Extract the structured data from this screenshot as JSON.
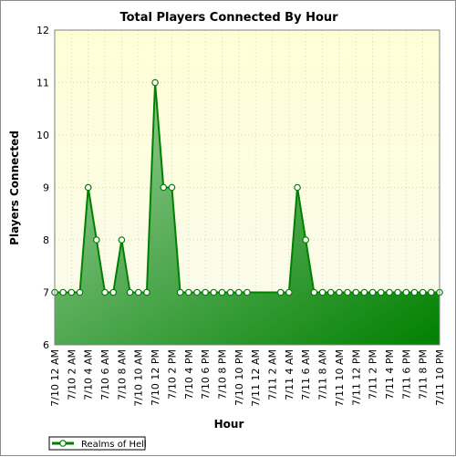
{
  "chart_data": {
    "type": "area",
    "title": "Total Players Connected By Hour",
    "xlabel": "Hour",
    "ylabel": "Players Connected",
    "ylim": [
      6,
      12
    ],
    "yticks": [
      6,
      7,
      8,
      9,
      10,
      11,
      12
    ],
    "grid": true,
    "legend_position": "bottom-left",
    "x": [
      "7/10 12 AM",
      "7/10 1 AM",
      "7/10 2 AM",
      "7/10 3 AM",
      "7/10 4 AM",
      "7/10 5 AM",
      "7/10 6 AM",
      "7/10 7 AM",
      "7/10 8 AM",
      "7/10 9 AM",
      "7/10 10 AM",
      "7/10 11 AM",
      "7/10 12 PM",
      "7/10 1 PM",
      "7/10 2 PM",
      "7/10 3 PM",
      "7/10 4 PM",
      "7/10 5 PM",
      "7/10 6 PM",
      "7/10 7 PM",
      "7/10 8 PM",
      "7/10 9 PM",
      "7/10 10 PM",
      "7/10 11 PM",
      "7/11 12 AM",
      "7/11 1 AM",
      "7/11 2 AM",
      "7/11 3 AM",
      "7/11 4 AM",
      "7/11 5 AM",
      "7/11 6 AM",
      "7/11 7 AM",
      "7/11 8 AM",
      "7/11 9 AM",
      "7/11 10 AM",
      "7/11 11 AM",
      "7/11 12 PM",
      "7/11 1 PM",
      "7/11 2 PM",
      "7/11 3 PM",
      "7/11 4 PM",
      "7/11 5 PM",
      "7/11 6 PM",
      "7/11 7 PM",
      "7/11 8 PM",
      "7/11 9 PM",
      "7/11 10 PM"
    ],
    "x_tick_labels": [
      "7/10 12 AM",
      "7/10 2 AM",
      "7/10 4 AM",
      "7/10 6 AM",
      "7/10 8 AM",
      "7/10 10 AM",
      "7/10 12 PM",
      "7/10 2 PM",
      "7/10 4 PM",
      "7/10 6 PM",
      "7/10 8 PM",
      "7/10 10 PM",
      "7/11 12 AM",
      "7/11 2 AM",
      "7/11 4 AM",
      "7/11 6 AM",
      "7/11 8 AM",
      "7/11 10 AM",
      "7/11 12 PM",
      "7/11 2 PM",
      "7/11 4 PM",
      "7/11 6 PM",
      "7/11 8 PM",
      "7/11 10 PM"
    ],
    "series": [
      {
        "name": "Realms of Hell",
        "color": "#008000",
        "values": [
          7,
          7,
          7,
          7,
          9,
          8,
          7,
          7,
          8,
          7,
          7,
          7,
          11,
          9,
          9,
          7,
          7,
          7,
          7,
          7,
          7,
          7,
          7,
          7,
          null,
          null,
          null,
          7,
          7,
          9,
          8,
          7,
          7,
          7,
          7,
          7,
          7,
          7,
          7,
          7,
          7,
          7,
          7,
          7,
          7,
          7,
          7
        ]
      }
    ]
  },
  "colors": {
    "plot_bg_top": "#ffffd6",
    "plot_bg_bottom": "#fbfbef",
    "area_light": "#a2d2a2",
    "area_dark": "#008000",
    "line": "#008000",
    "grid": "#c8c8c8"
  }
}
